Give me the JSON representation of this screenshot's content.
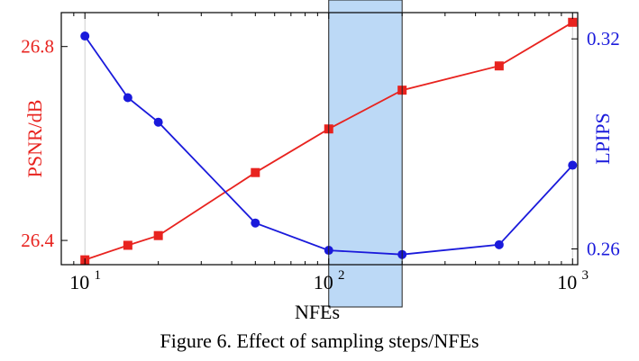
{
  "caption": "Figure 6. Effect of sampling steps/NFEs",
  "chart_data": {
    "type": "line",
    "xlabel": "NFEs",
    "xscale": "log",
    "xlim": [
      8,
      1050
    ],
    "x_ticks": [
      {
        "value": 10,
        "base": "10",
        "exp": "1"
      },
      {
        "value": 100,
        "base": "10",
        "exp": "2"
      },
      {
        "value": 1000,
        "base": "10",
        "exp": "3"
      }
    ],
    "left_axis": {
      "label": "PSNR/dB",
      "color": "#e8231f",
      "ylim": [
        26.35,
        26.87
      ],
      "ticks": [
        {
          "value": 26.4,
          "label": "26.4"
        },
        {
          "value": 26.8,
          "label": "26.8"
        }
      ]
    },
    "right_axis": {
      "label": "LPIPS",
      "color": "#1a1adb",
      "ylim": [
        0.2555,
        0.3275
      ],
      "ticks": [
        {
          "value": 0.26,
          "label": "0.26"
        },
        {
          "value": 0.32,
          "label": "0.32"
        }
      ]
    },
    "series": [
      {
        "axis": "left",
        "marker": "square",
        "color": "#e8231f",
        "x": [
          10,
          15,
          20,
          50,
          100,
          200,
          500,
          1000
        ],
        "values": [
          26.36,
          26.39,
          26.41,
          26.54,
          26.63,
          26.71,
          26.76,
          26.85
        ]
      },
      {
        "axis": "right",
        "marker": "circle",
        "color": "#1a1adb",
        "x": [
          10,
          15,
          20,
          50,
          100,
          200,
          500,
          1000
        ],
        "values": [
          0.3208,
          0.3032,
          0.2962,
          0.2674,
          0.2596,
          0.2584,
          0.2612,
          0.2839
        ]
      }
    ],
    "highlight": {
      "x_range": [
        100,
        200
      ],
      "color": "#8fbff0"
    },
    "grid_x": true
  }
}
